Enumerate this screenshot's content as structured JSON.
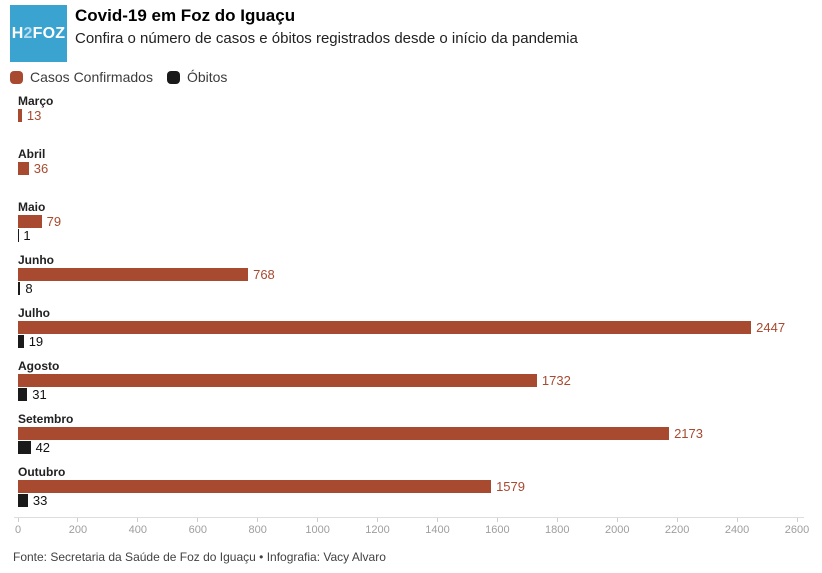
{
  "header": {
    "logo": {
      "h": "H",
      "two": "2",
      "foz": "FOZ",
      "bg_color": "#3aa3d0"
    },
    "title": "Covid-19 em Foz do Iguaçu",
    "subtitle": "Confira o número de casos e óbitos registrados desde o início da pandemia"
  },
  "legend": [
    {
      "label": "Casos Confirmados",
      "color": "#a74a30"
    },
    {
      "label": "Óbitos",
      "color": "#1a1a1a"
    }
  ],
  "chart_data": {
    "type": "bar",
    "orientation": "horizontal",
    "title": "Covid-19 em Foz do Iguaçu",
    "categories": [
      "Março",
      "Abril",
      "Maio",
      "Junho",
      "Julho",
      "Agosto",
      "Setembro",
      "Outubro"
    ],
    "series": [
      {
        "name": "Casos Confirmados",
        "color": "#a74a30",
        "values": [
          13,
          36,
          79,
          768,
          2447,
          1732,
          2173,
          1579
        ]
      },
      {
        "name": "Óbitos",
        "color": "#1a1a1a",
        "values": [
          null,
          null,
          1,
          8,
          19,
          31,
          42,
          33
        ]
      }
    ],
    "xlim": [
      0,
      2600
    ],
    "x_ticks": [
      0,
      200,
      400,
      600,
      800,
      1000,
      1200,
      1400,
      1600,
      1800,
      2000,
      2200,
      2400,
      2600
    ],
    "grid": false,
    "value_labels": true,
    "legend_position": "top"
  },
  "footer": {
    "source": "Fonte: Secretaria da Saúde de Foz do Iguaçu • Infografia: Vacy Alvaro"
  }
}
